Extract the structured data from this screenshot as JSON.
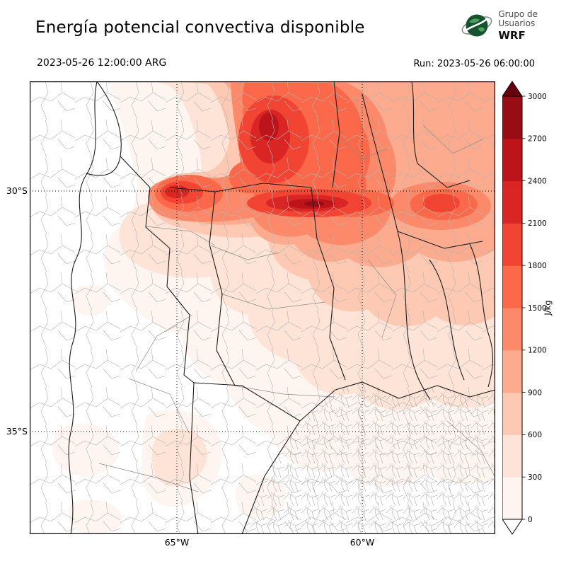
{
  "header": {
    "title": "Energía potencial convectiva disponible",
    "valid_time": "2023-05-26 12:00:00 ARG",
    "run_label": "Run: 2023-05-26 06:00:00",
    "logo": {
      "line1": "Grupo de",
      "line2": "Usuarios",
      "line3": "WRF"
    }
  },
  "map": {
    "lat_labels": [
      "30°S",
      "35°S"
    ],
    "lon_labels": [
      "65°W",
      "60°W"
    ]
  },
  "colorbar": {
    "units": "J/kg",
    "tick_labels_top_to_bottom": [
      "3000",
      "2700",
      "2400",
      "2100",
      "1800",
      "1500",
      "1200",
      "900",
      "600",
      "300",
      "0"
    ],
    "colors_low_to_high": [
      "#fff5f0",
      "#fee3d7",
      "#fdc9b3",
      "#fcab8f",
      "#fc8a6a",
      "#fb694a",
      "#f14432",
      "#d92523",
      "#bc141a",
      "#980c13"
    ],
    "over_color": "#67000d",
    "under_color": "#ffffff"
  },
  "chart_data": {
    "type": "heatmap",
    "title": "Energía potencial convectiva disponible",
    "variable": "CAPE (convective available potential energy)",
    "units": "J/kg",
    "valid_time": "2023-05-26 12:00:00 ARG",
    "model_run": "2023-05-26 06:00:00",
    "contour_levels": [
      0,
      300,
      600,
      900,
      1200,
      1500,
      1800,
      2100,
      2400,
      2700,
      3000
    ],
    "palette": "sequential reds, light (0) to dark (3000+), white below 0 band",
    "axes": {
      "lat_ticks": [
        "30°S",
        "35°S"
      ],
      "lon_ticks": [
        "65°W",
        "60°W"
      ],
      "approx_lon_range": [
        "69°W",
        "56.5°W"
      ],
      "approx_lat_range": [
        "27.5°S",
        "37°S"
      ],
      "grid": "dotted graticule at tick positions"
    },
    "legend_position": "right vertical colorbar with over/under arrows",
    "features": [
      {
        "region": "band along ~30°S over north-central Argentina (Córdoba N / Santa Fe / Santiago del Estero)",
        "cape_jkg": "1800–2400 (maximum core)"
      },
      {
        "region": "northern third of domain, 28–31°S",
        "cape_jkg": "600–1800"
      },
      {
        "region": "eastern half down to ~33°S",
        "cape_jkg": "300–900 decreasing southward"
      },
      {
        "region": "west (Cuyo/Andes), La Pampa and southern Buenos Aires",
        "cape_jkg": "0–300 / near 0"
      }
    ]
  }
}
